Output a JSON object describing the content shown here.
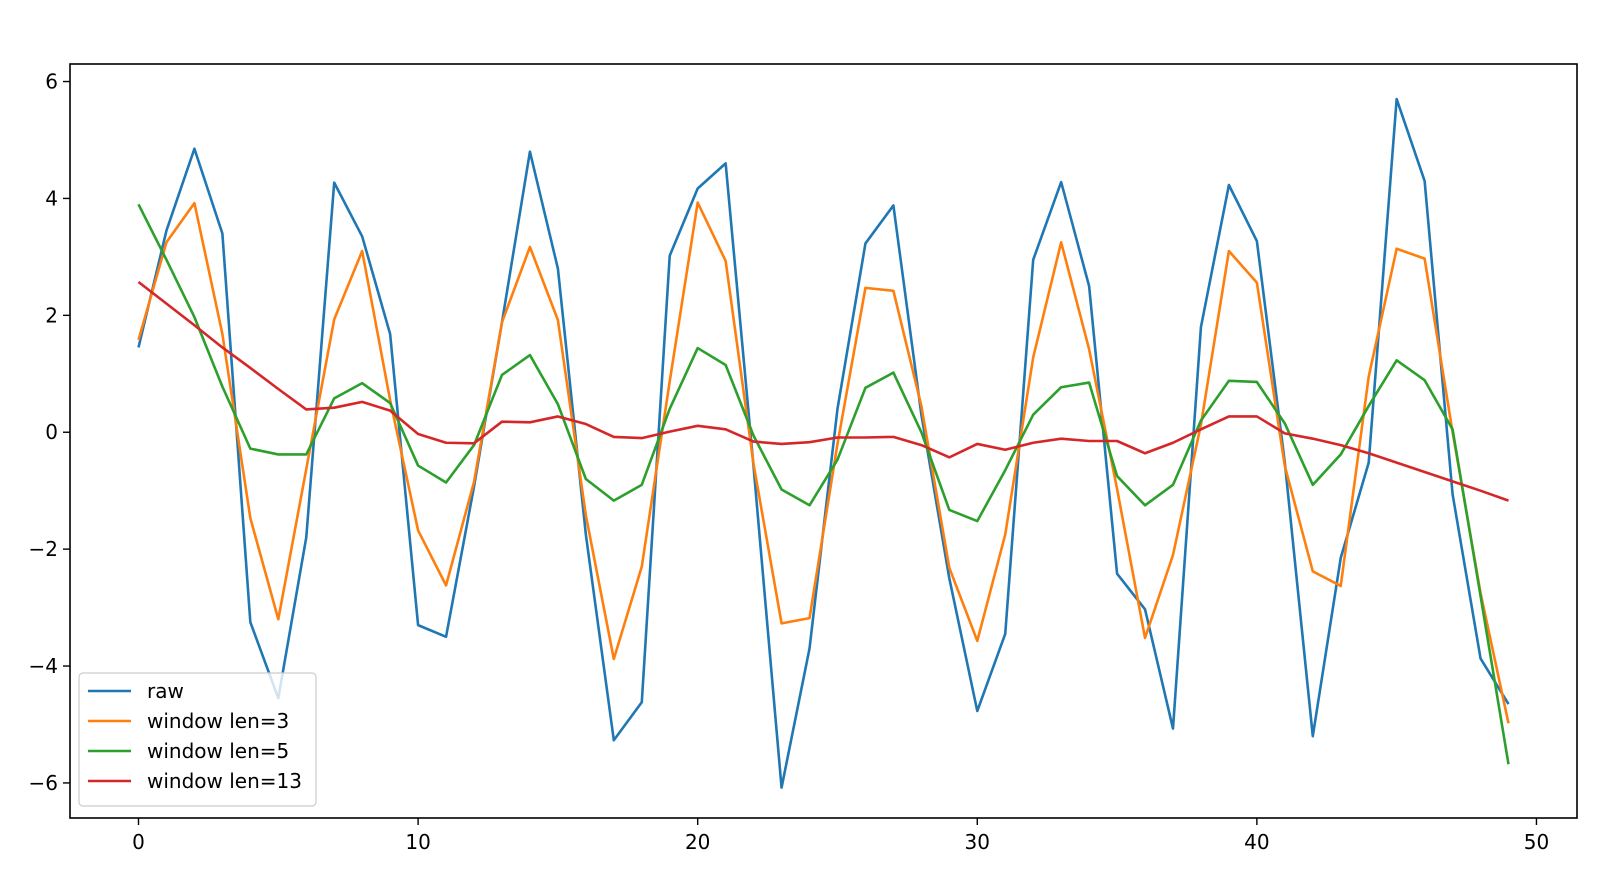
{
  "chart_data": {
    "type": "line",
    "title": "",
    "xlabel": "",
    "ylabel": "",
    "xlim": [
      -2.45,
      51.45
    ],
    "ylim": [
      -6.6,
      6.3
    ],
    "xticks": [
      0,
      10,
      20,
      30,
      40,
      50
    ],
    "xtick_labels": [
      "0",
      "10",
      "20",
      "30",
      "40",
      "50"
    ],
    "yticks": [
      -6,
      -4,
      -2,
      0,
      2,
      4,
      6
    ],
    "ytick_labels": [
      "−6",
      "−4",
      "−2",
      "0",
      "2",
      "4",
      "6"
    ],
    "grid": false,
    "legend_position": "lower-left",
    "x": [
      0,
      1,
      2,
      3,
      4,
      5,
      6,
      7,
      8,
      9,
      10,
      11,
      12,
      13,
      14,
      15,
      16,
      17,
      18,
      19,
      20,
      21,
      22,
      23,
      24,
      25,
      26,
      27,
      28,
      29,
      30,
      31,
      32,
      33,
      34,
      35,
      36,
      37,
      38,
      39,
      40,
      41,
      42,
      43,
      44,
      45,
      46,
      47,
      48,
      49
    ],
    "series": [
      {
        "name": "raw",
        "color": "#1f77b4",
        "values": [
          1.45,
          3.45,
          4.85,
          3.4,
          -3.25,
          -4.55,
          -1.8,
          4.27,
          3.35,
          1.68,
          -3.3,
          -3.5,
          -0.93,
          1.88,
          4.8,
          2.8,
          -1.75,
          -5.27,
          -4.62,
          3.02,
          4.17,
          4.6,
          -0.6,
          -6.08,
          -3.7,
          0.4,
          3.23,
          3.88,
          0.3,
          -2.5,
          -4.77,
          -3.45,
          2.95,
          4.28,
          2.5,
          -2.42,
          -3.03,
          -5.07,
          1.8,
          4.23,
          3.27,
          -0.52,
          -5.2,
          -2.15,
          -0.52,
          5.7,
          4.3,
          -1.06,
          -3.87,
          -4.65
        ]
      },
      {
        "name": "window len=3",
        "color": "#ff7f0e",
        "values": [
          1.58,
          3.25,
          3.92,
          1.68,
          -1.47,
          -3.2,
          -0.63,
          1.93,
          3.1,
          0.55,
          -1.68,
          -2.62,
          -0.85,
          1.88,
          3.17,
          1.92,
          -1.42,
          -3.88,
          -2.3,
          0.87,
          3.93,
          2.93,
          -0.55,
          -3.27,
          -3.18,
          -0.2,
          2.47,
          2.42,
          0.45,
          -2.32,
          -3.57,
          -1.75,
          1.28,
          3.25,
          1.42,
          -0.97,
          -3.52,
          -2.1,
          0.13,
          3.1,
          2.56,
          -0.58,
          -2.38,
          -2.63,
          0.95,
          3.14,
          2.97,
          0.0,
          -2.75,
          -4.98
        ]
      },
      {
        "name": "window len=5",
        "color": "#2ca02c",
        "values": [
          3.9,
          2.95,
          1.97,
          0.78,
          -0.28,
          -0.38,
          -0.38,
          0.58,
          0.84,
          0.5,
          -0.57,
          -0.86,
          -0.22,
          0.98,
          1.32,
          0.48,
          -0.8,
          -1.17,
          -0.9,
          0.4,
          1.44,
          1.15,
          -0.06,
          -0.98,
          -1.25,
          -0.47,
          0.76,
          1.02,
          0.0,
          -1.33,
          -1.52,
          -0.65,
          0.3,
          0.77,
          0.85,
          -0.75,
          -1.25,
          -0.9,
          0.2,
          0.88,
          0.86,
          0.15,
          -0.9,
          -0.38,
          0.45,
          1.23,
          0.89,
          0.05,
          -2.8,
          -5.68
        ]
      },
      {
        "name": "window len=13",
        "color": "#d62728",
        "values": [
          2.57,
          2.2,
          1.83,
          1.45,
          1.1,
          0.74,
          0.39,
          0.42,
          0.52,
          0.37,
          -0.03,
          -0.18,
          -0.19,
          0.18,
          0.17,
          0.27,
          0.14,
          -0.08,
          -0.1,
          0.01,
          0.11,
          0.05,
          -0.16,
          -0.2,
          -0.17,
          -0.09,
          -0.09,
          -0.08,
          -0.22,
          -0.43,
          -0.2,
          -0.3,
          -0.18,
          -0.11,
          -0.15,
          -0.15,
          -0.36,
          -0.18,
          0.05,
          0.27,
          0.27,
          -0.02,
          -0.11,
          -0.22,
          -0.36,
          -0.52,
          -0.68,
          -0.84,
          -1.0,
          -1.17
        ]
      }
    ]
  }
}
